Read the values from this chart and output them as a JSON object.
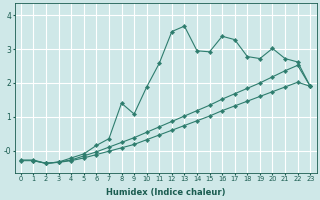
{
  "xlabel": "Humidex (Indice chaleur)",
  "background_color": "#cfe8e8",
  "grid_color": "#ffffff",
  "line_color": "#2e7d6e",
  "xlim": [
    -0.5,
    23.5
  ],
  "ylim": [
    -0.65,
    4.35
  ],
  "xticks": [
    0,
    1,
    2,
    3,
    4,
    5,
    6,
    7,
    8,
    9,
    10,
    11,
    12,
    13,
    14,
    15,
    16,
    17,
    18,
    19,
    20,
    21,
    22,
    23
  ],
  "yticks": [
    0,
    1,
    2,
    3,
    4
  ],
  "ytick_labels": [
    "-0",
    "1",
    "2",
    "3",
    "4"
  ],
  "line1_x": [
    0,
    1,
    2,
    3,
    4,
    5,
    6,
    7,
    8,
    9,
    10,
    11,
    12,
    13,
    14,
    15,
    16,
    17,
    18,
    19,
    20,
    21,
    22,
    23
  ],
  "line1_y": [
    -0.3,
    -0.3,
    -0.38,
    -0.35,
    -0.3,
    -0.22,
    -0.12,
    -0.02,
    0.08,
    0.18,
    0.32,
    0.46,
    0.6,
    0.74,
    0.88,
    1.02,
    1.18,
    1.32,
    1.46,
    1.6,
    1.74,
    1.88,
    2.02,
    1.9
  ],
  "line2_x": [
    0,
    1,
    2,
    3,
    4,
    5,
    6,
    7,
    8,
    9,
    10,
    11,
    12,
    13,
    14,
    15,
    16,
    17,
    18,
    19,
    20,
    21,
    22,
    23
  ],
  "line2_y": [
    -0.28,
    -0.28,
    -0.38,
    -0.34,
    -0.28,
    -0.16,
    -0.04,
    0.1,
    0.24,
    0.38,
    0.54,
    0.7,
    0.86,
    1.02,
    1.18,
    1.34,
    1.52,
    1.68,
    1.84,
    2.0,
    2.18,
    2.36,
    2.52,
    1.9
  ],
  "line3_x": [
    1,
    2,
    3,
    4,
    5,
    6,
    7,
    8,
    9,
    10,
    11,
    12,
    13,
    14,
    15,
    16,
    17,
    18,
    19,
    20,
    21,
    22,
    23
  ],
  "line3_y": [
    -0.3,
    -0.38,
    -0.34,
    -0.22,
    -0.1,
    0.15,
    0.35,
    1.4,
    1.08,
    1.88,
    2.58,
    3.52,
    3.68,
    2.95,
    2.92,
    3.38,
    3.28,
    2.78,
    2.72,
    3.02,
    2.72,
    2.62,
    1.9
  ]
}
